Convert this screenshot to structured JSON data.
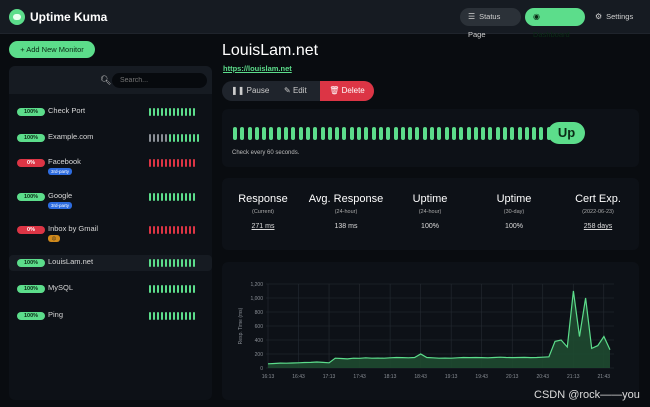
{
  "app": {
    "title": "Uptime Kuma"
  },
  "nav": {
    "status_page": "Status Page",
    "dashboard": "Dashboard",
    "settings": "Settings"
  },
  "sidebar": {
    "add_label": "+ Add New Monitor",
    "search_placeholder": "Search...",
    "monitors": [
      {
        "name": "Check Port",
        "pct": "100%",
        "status": "up",
        "tag": "",
        "beats": "gggggggggggg"
      },
      {
        "name": "Example.com",
        "pct": "100%",
        "status": "up",
        "tag": "",
        "beats": "ggggggggggggg"
      },
      {
        "name": "Facebook",
        "pct": "0%",
        "status": "down",
        "tag": "3rd-party",
        "beats": "rrrrrrrrrrrr"
      },
      {
        "name": "Google",
        "pct": "100%",
        "status": "up",
        "tag": "3rd-party",
        "beats": "gggggggggggg"
      },
      {
        "name": "Inbox by Gmail",
        "pct": "0%",
        "status": "down",
        "tag": "☹",
        "beats": "rrrrrrrrrrrr"
      },
      {
        "name": "LouisLam.net",
        "pct": "100%",
        "status": "up",
        "tag": "",
        "beats": "gggggggggggg"
      },
      {
        "name": "MySQL",
        "pct": "100%",
        "status": "up",
        "tag": "",
        "beats": "gggggggggggg"
      },
      {
        "name": "Ping",
        "pct": "100%",
        "status": "up",
        "tag": "",
        "beats": "gggggggggggg"
      }
    ]
  },
  "monitor": {
    "title": "LouisLam.net",
    "url": "https://louislam.net",
    "actions": {
      "pause": "Pause",
      "edit": "Edit",
      "delete": "Delete"
    },
    "status": "Up",
    "check_every": "Check every 60 seconds.",
    "heartbeat_count": 48,
    "stats": [
      {
        "head": "Response",
        "sub": "(Current)",
        "value": "271 ms",
        "link": true
      },
      {
        "head": "Avg. Response",
        "sub": "(24-hour)",
        "value": "138 ms",
        "link": false
      },
      {
        "head": "Uptime",
        "sub": "(24-hour)",
        "value": "100%",
        "link": false
      },
      {
        "head": "Uptime",
        "sub": "(30-day)",
        "value": "100%",
        "link": false
      },
      {
        "head": "Cert Exp.",
        "sub": "(2022-06-23)",
        "value": "258 days",
        "link": true
      }
    ]
  },
  "chart_data": {
    "type": "area",
    "ylabel": "Resp. Time (ms)",
    "yticks": [
      "0",
      "200",
      "400",
      "600",
      "800",
      "1,000",
      "1,200"
    ],
    "ylim": [
      0,
      1200
    ],
    "xticks": [
      "16:13",
      "16:43",
      "17:13",
      "17:43",
      "18:13",
      "18:43",
      "19:13",
      "19:43",
      "20:13",
      "20:43",
      "21:13",
      "21:43"
    ],
    "series": [
      {
        "values": [
          60,
          65,
          70,
          68,
          72,
          75,
          78,
          80,
          85,
          80,
          75,
          140,
          135,
          130,
          140,
          138,
          145,
          140,
          142,
          140,
          145,
          150,
          148,
          145,
          150,
          200,
          150,
          145,
          140,
          142,
          140,
          145,
          150,
          148,
          150,
          148,
          145,
          150,
          155,
          150,
          148,
          150,
          152,
          148,
          150,
          155,
          160,
          380,
          400,
          300,
          1100,
          450,
          1000,
          280,
          320,
          450,
          260
        ]
      }
    ],
    "colors": {
      "line": "#5cdd8b",
      "fill": "#1e4a30",
      "grid": "#262c33"
    }
  },
  "watermark": "CSDN @rock——you"
}
